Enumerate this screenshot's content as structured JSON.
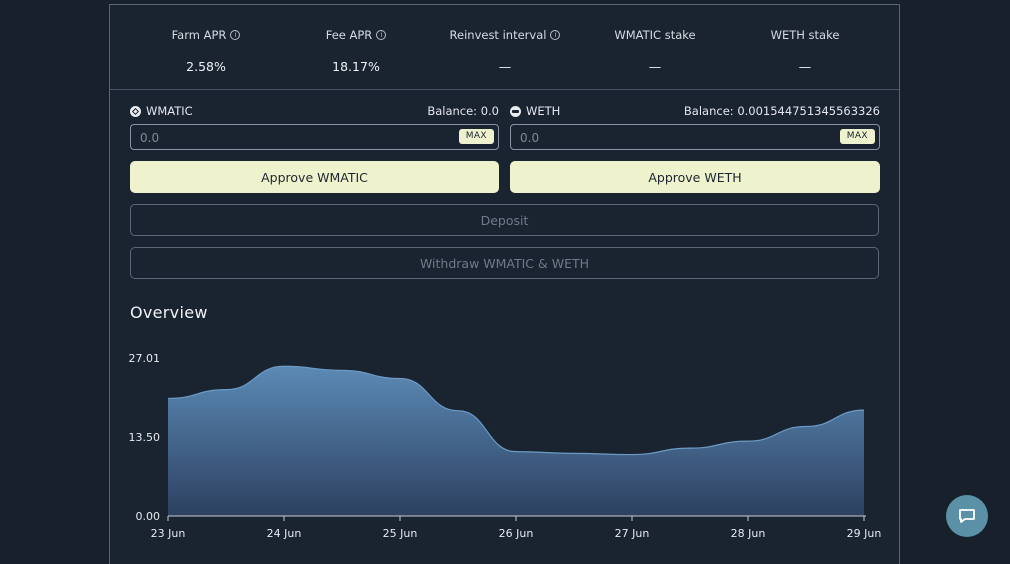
{
  "stats": [
    {
      "label": "Farm APR",
      "value": "2.58%",
      "info": true
    },
    {
      "label": "Fee APR",
      "value": "18.17%",
      "info": true
    },
    {
      "label": "Reinvest interval",
      "value": "—",
      "info": true
    },
    {
      "label": "WMATIC stake",
      "value": "—",
      "info": false
    },
    {
      "label": "WETH stake",
      "value": "—",
      "info": false
    }
  ],
  "tokens": {
    "a": {
      "name": "WMATIC",
      "balance": "Balance: 0.0",
      "placeholder": "0.0",
      "max_label": "MAX",
      "icon": "polygon-icon"
    },
    "b": {
      "name": "WETH",
      "balance": "Balance: 0.001544751345563326",
      "placeholder": "0.0",
      "max_label": "MAX",
      "icon": "ethereum-icon"
    }
  },
  "buttons": {
    "approve_a": "Approve WMATIC",
    "approve_b": "Approve WETH",
    "deposit": "Deposit",
    "withdraw": "Withdraw WMATIC & WETH"
  },
  "overview": {
    "title": "Overview"
  },
  "colors": {
    "accent": "#eef3cd",
    "area_top": "#5b8ab5",
    "area_bottom": "#2d4060",
    "chat": "#5a91a6"
  },
  "chart_data": {
    "type": "area",
    "title": "",
    "xlabel": "",
    "ylabel": "",
    "ylim": [
      0,
      27.01
    ],
    "y_ticks": [
      "27.01",
      "13.50",
      "0.00"
    ],
    "x_ticks": [
      "23 Jun",
      "24 Jun",
      "25 Jun",
      "26 Jun",
      "27 Jun",
      "28 Jun",
      "29 Jun"
    ],
    "x": [
      0,
      0.5,
      1,
      1.5,
      2,
      2.5,
      3,
      3.5,
      4,
      4.5,
      5,
      5.5,
      6
    ],
    "values": [
      20.1,
      21.6,
      25.6,
      24.9,
      23.5,
      18.0,
      11.0,
      10.7,
      10.5,
      11.6,
      12.8,
      15.3,
      18.1
    ],
    "grid": false
  },
  "chat": {
    "icon": "chat-bubble-icon"
  }
}
